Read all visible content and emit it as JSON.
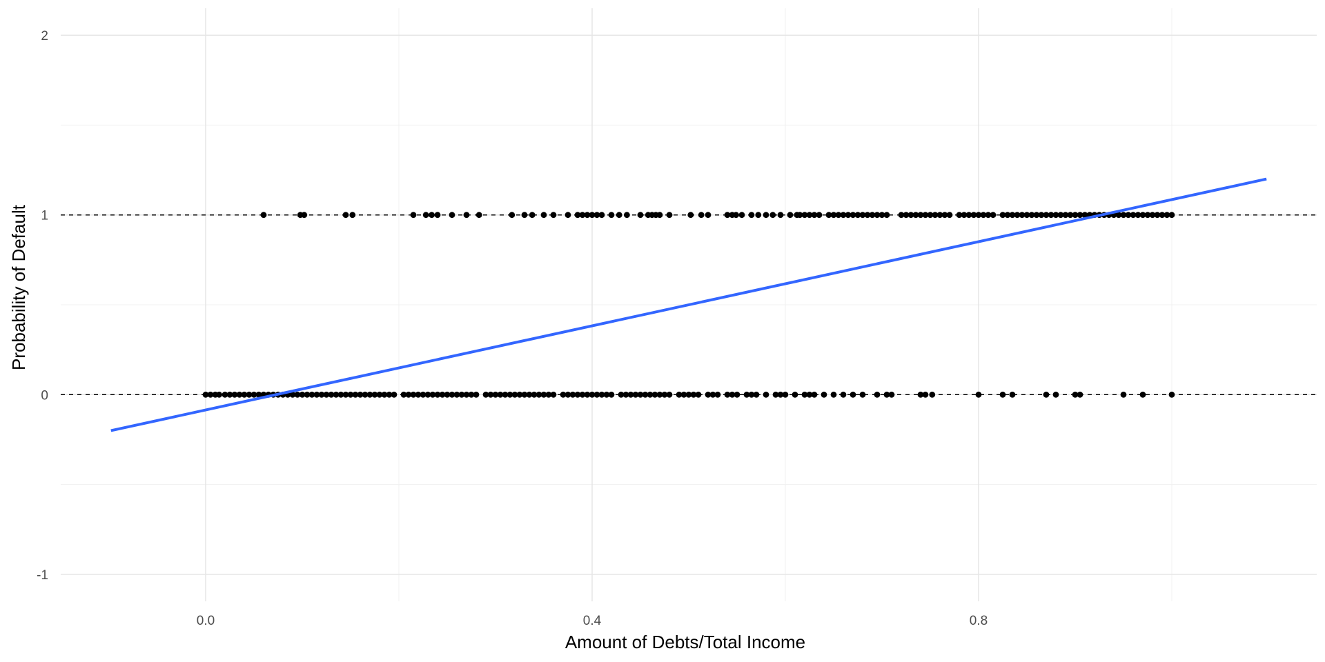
{
  "chart_data": {
    "type": "scatter",
    "title": "",
    "xlabel": "Amount of Debts/Total Income",
    "ylabel": "Probability of Default",
    "xlim": [
      -0.15,
      1.15
    ],
    "ylim": [
      -1.15,
      2.15
    ],
    "x_ticks": [
      0.0,
      0.4,
      0.8
    ],
    "x_tick_labels": [
      "0.0",
      "0.4",
      "0.8"
    ],
    "x_minor_ticks": [
      0.2,
      0.6,
      1.0
    ],
    "y_ticks": [
      -1,
      0,
      1,
      2
    ],
    "y_tick_labels": [
      "-1",
      "0",
      "1",
      "2"
    ],
    "y_minor_ticks": [
      -0.5,
      0.5,
      1.5
    ],
    "grid": true,
    "reference_lines": [
      0,
      1
    ],
    "fit_line": {
      "x": [
        -0.098,
        1.098
      ],
      "y": [
        -0.2,
        1.2
      ],
      "color": "#3366FF"
    },
    "point_color": "#000000",
    "series": [
      {
        "values_y": 0,
        "x": [
          0.0,
          0.005,
          0.01,
          0.014,
          0.02,
          0.025,
          0.03,
          0.035,
          0.04,
          0.045,
          0.05,
          0.055,
          0.06,
          0.065,
          0.07,
          0.075,
          0.08,
          0.085,
          0.09,
          0.095,
          0.1,
          0.105,
          0.11,
          0.115,
          0.12,
          0.125,
          0.13,
          0.135,
          0.14,
          0.145,
          0.15,
          0.155,
          0.16,
          0.165,
          0.17,
          0.175,
          0.18,
          0.185,
          0.19,
          0.195,
          0.205,
          0.21,
          0.215,
          0.22,
          0.225,
          0.23,
          0.235,
          0.24,
          0.245,
          0.25,
          0.255,
          0.26,
          0.265,
          0.27,
          0.275,
          0.28,
          0.29,
          0.295,
          0.3,
          0.305,
          0.31,
          0.315,
          0.32,
          0.325,
          0.33,
          0.335,
          0.34,
          0.345,
          0.35,
          0.355,
          0.36,
          0.37,
          0.375,
          0.38,
          0.385,
          0.39,
          0.395,
          0.4,
          0.405,
          0.41,
          0.415,
          0.42,
          0.43,
          0.435,
          0.44,
          0.445,
          0.45,
          0.455,
          0.46,
          0.465,
          0.47,
          0.475,
          0.48,
          0.49,
          0.495,
          0.5,
          0.505,
          0.51,
          0.52,
          0.525,
          0.53,
          0.54,
          0.545,
          0.55,
          0.56,
          0.565,
          0.57,
          0.58,
          0.59,
          0.595,
          0.6,
          0.61,
          0.62,
          0.625,
          0.63,
          0.64,
          0.65,
          0.66,
          0.67,
          0.68,
          0.695,
          0.705,
          0.71,
          0.74,
          0.745,
          0.752,
          0.8,
          0.825,
          0.835,
          0.87,
          0.88,
          0.9,
          0.905,
          0.95,
          0.97,
          1.0
        ]
      },
      {
        "values_y": 1,
        "x": [
          0.06,
          0.098,
          0.102,
          0.145,
          0.152,
          0.215,
          0.228,
          0.234,
          0.24,
          0.255,
          0.27,
          0.283,
          0.317,
          0.33,
          0.338,
          0.35,
          0.36,
          0.375,
          0.385,
          0.39,
          0.395,
          0.4,
          0.405,
          0.41,
          0.42,
          0.428,
          0.436,
          0.45,
          0.458,
          0.462,
          0.466,
          0.47,
          0.48,
          0.502,
          0.513,
          0.52,
          0.54,
          0.545,
          0.549,
          0.555,
          0.565,
          0.572,
          0.58,
          0.587,
          0.595,
          0.605,
          0.612,
          0.615,
          0.62,
          0.625,
          0.63,
          0.635,
          0.645,
          0.65,
          0.655,
          0.66,
          0.665,
          0.67,
          0.675,
          0.68,
          0.685,
          0.69,
          0.695,
          0.7,
          0.705,
          0.72,
          0.725,
          0.73,
          0.735,
          0.74,
          0.745,
          0.75,
          0.755,
          0.76,
          0.765,
          0.77,
          0.78,
          0.785,
          0.79,
          0.795,
          0.8,
          0.805,
          0.81,
          0.815,
          0.825,
          0.83,
          0.835,
          0.84,
          0.845,
          0.85,
          0.855,
          0.86,
          0.865,
          0.87,
          0.875,
          0.88,
          0.885,
          0.89,
          0.895,
          0.9,
          0.905,
          0.91,
          0.915,
          0.92,
          0.925,
          0.93,
          0.935,
          0.94,
          0.945,
          0.95,
          0.955,
          0.96,
          0.965,
          0.97,
          0.975,
          0.98,
          0.985,
          0.99,
          0.995,
          1.0
        ]
      }
    ]
  }
}
